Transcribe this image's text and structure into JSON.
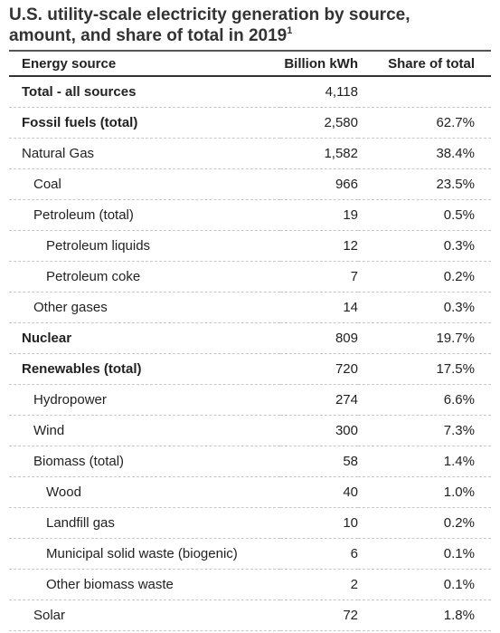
{
  "title": {
    "line1": "U.S. utility-scale electricity generation by source,",
    "line2": "amount, and share of total in 2019",
    "footnote": "1"
  },
  "columns": {
    "source": "Energy source",
    "amount": "Billion kWh",
    "share": "Share of total"
  },
  "rows": [
    {
      "label": "Total - all sources",
      "amount": "4,118",
      "share": "",
      "bold": true,
      "indent": 0
    },
    {
      "label": "Fossil fuels (total)",
      "amount": "2,580",
      "share": "62.7%",
      "bold": true,
      "indent": 0
    },
    {
      "label": "Natural Gas",
      "amount": "1,582",
      "share": "38.4%",
      "bold": false,
      "indent": 0
    },
    {
      "label": "Coal",
      "amount": "966",
      "share": "23.5%",
      "bold": false,
      "indent": 1
    },
    {
      "label": "Petroleum (total)",
      "amount": "19",
      "share": "0.5%",
      "bold": false,
      "indent": 1
    },
    {
      "label": "Petroleum liquids",
      "amount": "12",
      "share": "0.3%",
      "bold": false,
      "indent": 2
    },
    {
      "label": "Petroleum coke",
      "amount": "7",
      "share": "0.2%",
      "bold": false,
      "indent": 2
    },
    {
      "label": "Other gases",
      "amount": "14",
      "share": "0.3%",
      "bold": false,
      "indent": 1
    },
    {
      "label": "Nuclear",
      "amount": "809",
      "share": "19.7%",
      "bold": true,
      "indent": 0
    },
    {
      "label": "Renewables (total)",
      "amount": "720",
      "share": "17.5%",
      "bold": true,
      "indent": 0
    },
    {
      "label": "Hydropower",
      "amount": "274",
      "share": "6.6%",
      "bold": false,
      "indent": 1
    },
    {
      "label": "Wind",
      "amount": "300",
      "share": "7.3%",
      "bold": false,
      "indent": 1
    },
    {
      "label": "Biomass (total)",
      "amount": "58",
      "share": "1.4%",
      "bold": false,
      "indent": 1
    },
    {
      "label": "Wood",
      "amount": "40",
      "share": "1.0%",
      "bold": false,
      "indent": 2
    },
    {
      "label": "Landfill gas",
      "amount": "10",
      "share": "0.2%",
      "bold": false,
      "indent": 2
    },
    {
      "label": "Municipal solid waste (biogenic)",
      "amount": "6",
      "share": "0.1%",
      "bold": false,
      "indent": 2
    },
    {
      "label": "Other biomass waste",
      "amount": "2",
      "share": "0.1%",
      "bold": false,
      "indent": 2
    },
    {
      "label": "Solar",
      "amount": "72",
      "share": "1.8%",
      "bold": false,
      "indent": 1
    }
  ]
}
